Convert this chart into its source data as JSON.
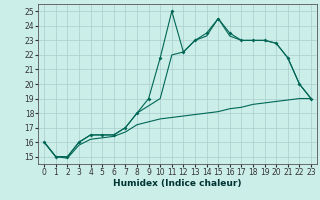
{
  "xlabel": "Humidex (Indice chaleur)",
  "xlim": [
    -0.5,
    23.5
  ],
  "ylim": [
    14.5,
    25.5
  ],
  "xticks": [
    0,
    1,
    2,
    3,
    4,
    5,
    6,
    7,
    8,
    9,
    10,
    11,
    12,
    13,
    14,
    15,
    16,
    17,
    18,
    19,
    20,
    21,
    22,
    23
  ],
  "yticks": [
    15,
    16,
    17,
    18,
    19,
    20,
    21,
    22,
    23,
    24,
    25
  ],
  "bg_color": "#cceee8",
  "grid_color": "#aacccc",
  "line_color": "#006655",
  "line1_x": [
    0,
    1,
    2,
    3,
    4,
    5,
    6,
    7,
    8,
    9,
    10,
    11,
    12,
    13,
    14,
    15,
    16,
    17,
    18,
    19,
    20,
    21,
    22,
    23
  ],
  "line1_y": [
    16,
    15,
    15,
    16,
    16.5,
    16.5,
    16.5,
    17,
    18,
    19,
    21.8,
    25,
    22.2,
    23,
    23.5,
    24.5,
    23.5,
    23,
    23,
    23,
    22.8,
    21.8,
    20,
    19
  ],
  "line2_x": [
    0,
    1,
    2,
    3,
    4,
    5,
    6,
    7,
    8,
    9,
    10,
    11,
    12,
    13,
    14,
    15,
    16,
    17,
    18,
    19,
    20,
    21,
    22,
    23
  ],
  "line2_y": [
    16,
    15,
    15,
    16,
    16.5,
    16.5,
    16.5,
    17,
    18,
    18.5,
    19,
    22,
    22.2,
    23,
    23.3,
    24.5,
    23.3,
    23,
    23,
    23,
    22.8,
    21.8,
    20,
    19
  ],
  "line3_x": [
    0,
    1,
    2,
    3,
    4,
    5,
    6,
    7,
    8,
    9,
    10,
    11,
    12,
    13,
    14,
    15,
    16,
    17,
    18,
    19,
    20,
    21,
    22,
    23
  ],
  "line3_y": [
    16,
    15,
    14.9,
    15.8,
    16.2,
    16.3,
    16.4,
    16.7,
    17.2,
    17.4,
    17.6,
    17.7,
    17.8,
    17.9,
    18.0,
    18.1,
    18.3,
    18.4,
    18.6,
    18.7,
    18.8,
    18.9,
    19.0,
    19.0
  ]
}
